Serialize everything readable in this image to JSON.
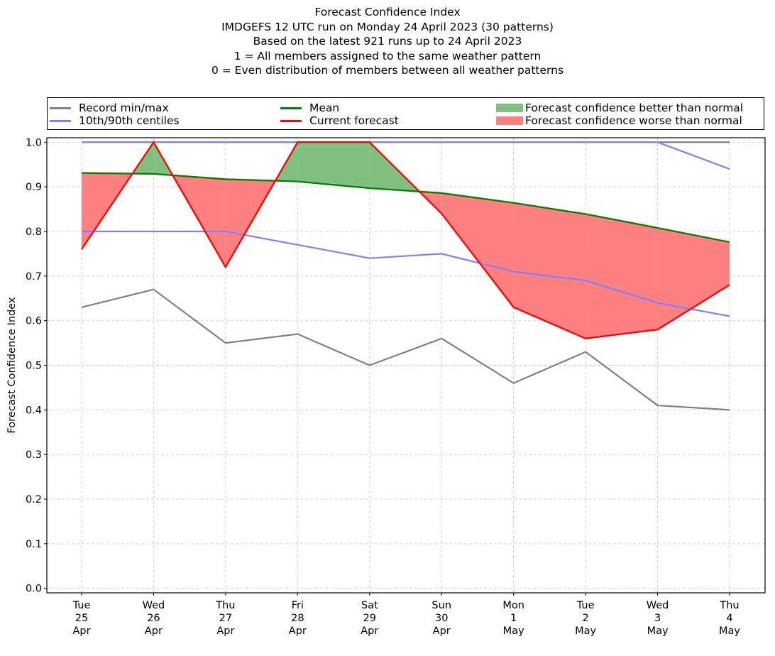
{
  "chart_data": {
    "type": "line",
    "title": "Forecast Confidence Index",
    "subtitle_lines": [
      "IMDGEFS 12 UTC run on Monday 24 April 2023 (30 patterns)",
      "Based on the latest 921 runs up to 24 April 2023",
      "1 = All members assigned to the same weather pattern",
      "0 = Even distribution of members between all weather patterns"
    ],
    "xlabel": "",
    "ylabel": "Forecast Confidence Index",
    "ylim": [
      -0.01,
      1.01
    ],
    "yticks": [
      "0.0",
      "0.1",
      "0.2",
      "0.3",
      "0.4",
      "0.5",
      "0.6",
      "0.7",
      "0.8",
      "0.9",
      "1.0"
    ],
    "ytick_values": [
      0.0,
      0.1,
      0.2,
      0.3,
      0.4,
      0.5,
      0.6,
      0.7,
      0.8,
      0.9,
      1.0
    ],
    "grid": true,
    "legend_placement": "top (above plot)",
    "categories": [
      [
        "Tue",
        "25",
        "Apr"
      ],
      [
        "Wed",
        "26",
        "Apr"
      ],
      [
        "Thu",
        "27",
        "Apr"
      ],
      [
        "Fri",
        "28",
        "Apr"
      ],
      [
        "Sat",
        "29",
        "Apr"
      ],
      [
        "Sun",
        "30",
        "Apr"
      ],
      [
        "Mon",
        "1",
        "May"
      ],
      [
        "Tue",
        "2",
        "May"
      ],
      [
        "Wed",
        "3",
        "May"
      ],
      [
        "Thu",
        "4",
        "May"
      ]
    ],
    "series": [
      {
        "name": "Record max",
        "legend": "Record min/max",
        "color": "#808080",
        "values": [
          1.0,
          1.0,
          1.0,
          1.0,
          1.0,
          1.0,
          1.0,
          1.0,
          1.0,
          1.0
        ]
      },
      {
        "name": "Record min",
        "legend": "Record min/max",
        "color": "#808080",
        "values": [
          0.63,
          0.67,
          0.55,
          0.57,
          0.5,
          0.56,
          0.46,
          0.53,
          0.41,
          0.4
        ]
      },
      {
        "name": "90th centile",
        "legend": "10th/90th centiles",
        "color": "#8080ff",
        "values": [
          1.0,
          1.0,
          1.0,
          1.0,
          1.0,
          1.0,
          1.0,
          1.0,
          1.0,
          0.94
        ]
      },
      {
        "name": "10th centile",
        "legend": "10th/90th centiles",
        "color": "#8080ff",
        "values": [
          0.8,
          0.8,
          0.8,
          0.77,
          0.74,
          0.75,
          0.71,
          0.69,
          0.64,
          0.61
        ]
      },
      {
        "name": "Mean",
        "legend": "Mean",
        "color": "#008000",
        "values": [
          0.931,
          0.929,
          0.917,
          0.912,
          0.897,
          0.886,
          0.864,
          0.839,
          0.808,
          0.776
        ]
      },
      {
        "name": "Current forecast",
        "legend": "Current forecast",
        "color": "#ff0000",
        "values": [
          0.76,
          1.0,
          0.72,
          1.0,
          1.0,
          0.84,
          0.63,
          0.56,
          0.58,
          0.68
        ]
      }
    ],
    "fills": [
      {
        "name": "Forecast confidence better than normal",
        "color": "#80c080",
        "condition": "current > mean"
      },
      {
        "name": "Forecast confidence worse than normal",
        "color": "#ff8080",
        "condition": "current < mean"
      }
    ]
  },
  "legend": {
    "items": [
      {
        "label": "Record min/max",
        "color": "#808080",
        "kind": "line"
      },
      {
        "label": "10th/90th centiles",
        "color": "#8080ff",
        "kind": "line"
      },
      {
        "label": "Mean",
        "color": "#008000",
        "kind": "line"
      },
      {
        "label": "Current forecast",
        "color": "#ff0000",
        "kind": "line"
      },
      {
        "label": "Forecast confidence better than normal",
        "color": "#80c080",
        "kind": "patch"
      },
      {
        "label": "Forecast confidence worse than normal",
        "color": "#ff8080",
        "kind": "patch"
      }
    ]
  }
}
